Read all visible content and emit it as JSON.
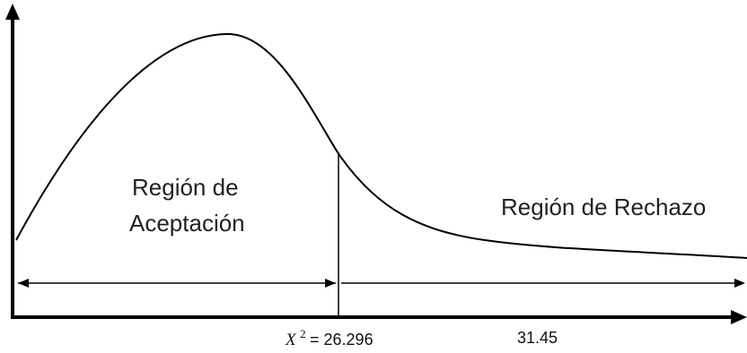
{
  "diagram": {
    "acceptance_region": {
      "line1": "Región de",
      "line2": "Aceptación"
    },
    "rejection_region": {
      "label": "Región de Rechazo"
    },
    "critical_value": {
      "symbol": "X",
      "superscript": "2",
      "text": "= 26.296"
    },
    "observed_value": {
      "text": "31.45"
    },
    "colors": {
      "lines": "#000000",
      "text": "#222222"
    }
  }
}
